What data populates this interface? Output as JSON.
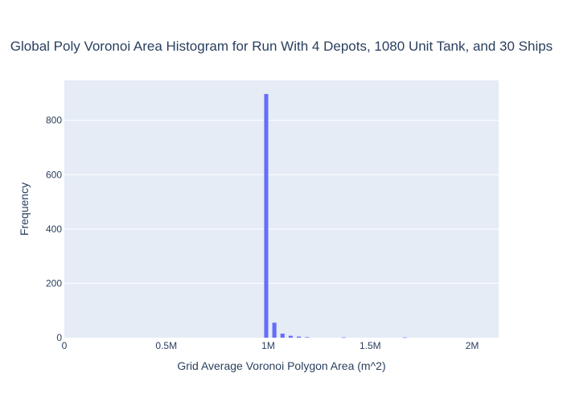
{
  "chart_data": {
    "type": "bar",
    "title": "Global Poly Voronoi Area Histogram for Run With 4 Depots, 1080 Unit Tank, and 30 Ships",
    "xlabel": "Grid Average Voronoi Polygon Area (m^2)",
    "ylabel": "Frequency",
    "xlim": [
      0,
      2130000
    ],
    "ylim": [
      0,
      947
    ],
    "x_ticks": [
      0,
      500000,
      1000000,
      1500000,
      2000000
    ],
    "x_tick_labels": [
      "0",
      "0.5M",
      "1M",
      "1.5M",
      "2M"
    ],
    "y_ticks": [
      0,
      200,
      400,
      600,
      800
    ],
    "y_tick_labels": [
      "0",
      "200",
      "400",
      "600",
      "800"
    ],
    "bin_width": 40000,
    "bar_width": 20000,
    "grid": true,
    "series": [
      {
        "name": "Frequency",
        "color": "#636efa",
        "bins": [
          {
            "x": 990000,
            "value": 897
          },
          {
            "x": 1030000,
            "value": 55
          },
          {
            "x": 1070000,
            "value": 15
          },
          {
            "x": 1110000,
            "value": 7
          },
          {
            "x": 1150000,
            "value": 4
          },
          {
            "x": 1190000,
            "value": 2
          },
          {
            "x": 1370000,
            "value": 1
          },
          {
            "x": 1670000,
            "value": 1
          }
        ]
      }
    ]
  },
  "colors": {
    "plot_background": "#e5ecf6",
    "gridline": "#ffffff",
    "text": "#2a3f5f",
    "bar": "#636efa"
  }
}
